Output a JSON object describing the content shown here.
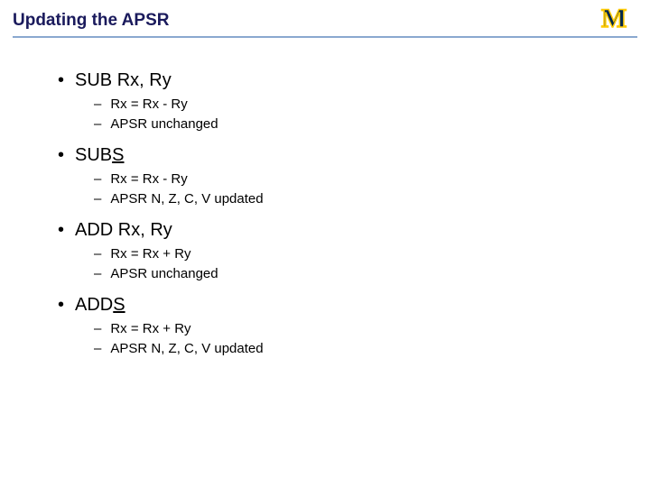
{
  "title": "Updating the APSR",
  "colors": {
    "title_color": "#1a1a5c",
    "underline_color": "#8aa8d0",
    "logo_fill": "#00274c",
    "logo_stroke": "#ffcb05",
    "text_color": "#000000",
    "background": "#ffffff"
  },
  "typography": {
    "title_fontsize": 19,
    "l1_fontsize": 20,
    "l2_fontsize": 15,
    "font_family": "Verdana"
  },
  "items": [
    {
      "label_pre": "SUB Rx, Ry",
      "label_underline": "",
      "label_post": "",
      "sub": [
        "Rx = Rx - Ry",
        "APSR unchanged"
      ]
    },
    {
      "label_pre": "SUB",
      "label_underline": "S",
      "label_post": "",
      "sub": [
        "Rx = Rx - Ry",
        "APSR N, Z, C, V updated"
      ]
    },
    {
      "label_pre": "ADD Rx, Ry",
      "label_underline": "",
      "label_post": "",
      "sub": [
        "Rx = Rx + Ry",
        "APSR unchanged"
      ]
    },
    {
      "label_pre": "ADD",
      "label_underline": "S",
      "label_post": "",
      "sub": [
        "Rx = Rx + Ry",
        "APSR N, Z, C, V updated"
      ]
    }
  ]
}
